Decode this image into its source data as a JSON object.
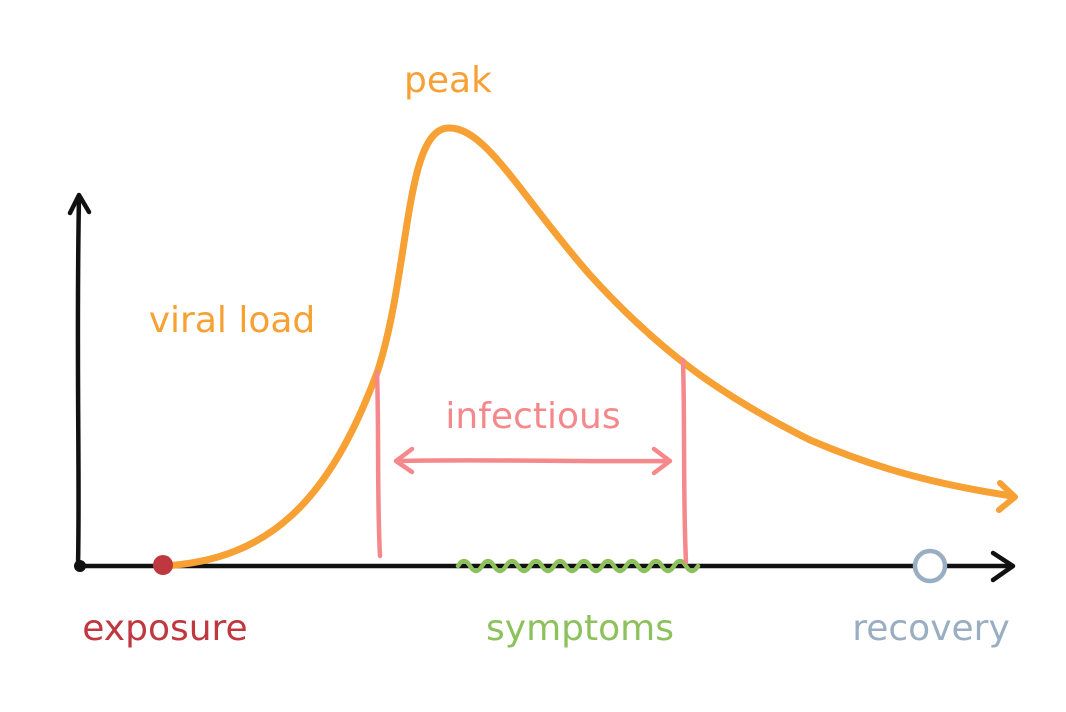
{
  "labels": {
    "peak": "peak",
    "viral_load": "viral load",
    "infectious": "infectious",
    "exposure": "exposure",
    "symptoms": "symptoms",
    "recovery": "recovery"
  },
  "colors": {
    "axis": "#111111",
    "curve": "#f7a034",
    "infectious": "#f5888b",
    "exposure": "#c0383f",
    "symptoms": "#8cc15b",
    "recovery": "#9aaec2",
    "background": "#ffffff"
  }
}
